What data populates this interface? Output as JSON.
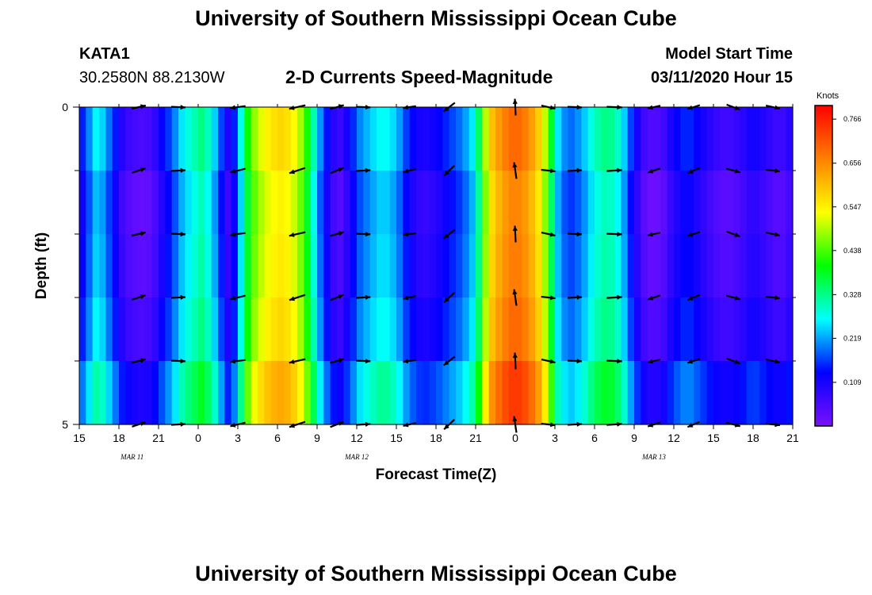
{
  "header": {
    "title": "University of Southern Mississippi Ocean Cube",
    "station": "KATA1",
    "coordinates": "30.2580N 88.2130W",
    "plot_title": "2-D Currents Speed-Magnitude",
    "model_start_label": "Model Start Time",
    "model_start_value": "03/11/2020 Hour 15"
  },
  "footer": {
    "title": "University of Southern Mississippi Ocean Cube"
  },
  "chart_data": {
    "type": "heatmap",
    "title": "2-D Currents Speed-Magnitude",
    "xlabel": "Forecast Time(Z)",
    "ylabel": "Depth (ft)",
    "x_hours": [
      0,
      3,
      6,
      9,
      12,
      15,
      18,
      21,
      24,
      27,
      30,
      33,
      36,
      39,
      42,
      45,
      48,
      51,
      54
    ],
    "x_tick_labels": [
      "15",
      "18",
      "21",
      "0",
      "3",
      "6",
      "9",
      "12",
      "15",
      "18",
      "21",
      "0",
      "3",
      "6",
      "9",
      "12",
      "15",
      "18",
      "21"
    ],
    "date_labels": [
      {
        "text": "MAR  11",
        "hour": 4
      },
      {
        "text": "MAR  12",
        "hour": 21
      },
      {
        "text": "MAR  13",
        "hour": 43.5
      }
    ],
    "ylim": [
      0,
      5
    ],
    "y_tick_labels": [
      "0",
      "5"
    ],
    "y_minor_ticks": [
      1,
      2,
      3,
      4
    ],
    "colorbar": {
      "title": "Knots",
      "min": 0,
      "max": 0.8,
      "labels": [
        "0.766",
        "0.656",
        "0.547",
        "0.438",
        "0.328",
        "0.219",
        "0.109"
      ],
      "label_values": [
        0.766,
        0.656,
        0.547,
        0.438,
        0.328,
        0.219,
        0.109
      ],
      "color_stops": [
        "#7a10ff",
        "#0000ff",
        "#00ffff",
        "#00ff00",
        "#ffff00",
        "#ff8000",
        "#ff0000"
      ]
    },
    "speed_profile": [
      {
        "hour": 0.0,
        "v": 0.12
      },
      {
        "hour": 0.7,
        "v": 0.2
      },
      {
        "hour": 1.4,
        "v": 0.28
      },
      {
        "hour": 2.0,
        "v": 0.22
      },
      {
        "hour": 2.6,
        "v": 0.16
      },
      {
        "hour": 3.4,
        "v": 0.08
      },
      {
        "hour": 4.5,
        "v": 0.05
      },
      {
        "hour": 5.5,
        "v": 0.06
      },
      {
        "hour": 6.2,
        "v": 0.12
      },
      {
        "hour": 7.0,
        "v": 0.18
      },
      {
        "hour": 7.8,
        "v": 0.26
      },
      {
        "hour": 8.6,
        "v": 0.3
      },
      {
        "hour": 9.4,
        "v": 0.34
      },
      {
        "hour": 10.2,
        "v": 0.25
      },
      {
        "hour": 10.8,
        "v": 0.16
      },
      {
        "hour": 11.4,
        "v": 0.08
      },
      {
        "hour": 12.0,
        "v": 0.2
      },
      {
        "hour": 12.6,
        "v": 0.38
      },
      {
        "hour": 13.4,
        "v": 0.5
      },
      {
        "hour": 14.5,
        "v": 0.56
      },
      {
        "hour": 15.5,
        "v": 0.58
      },
      {
        "hour": 16.5,
        "v": 0.52
      },
      {
        "hour": 17.2,
        "v": 0.42
      },
      {
        "hour": 17.8,
        "v": 0.3
      },
      {
        "hour": 18.3,
        "v": 0.2
      },
      {
        "hour": 18.9,
        "v": 0.12
      },
      {
        "hour": 19.6,
        "v": 0.06
      },
      {
        "hour": 20.4,
        "v": 0.12
      },
      {
        "hour": 21.2,
        "v": 0.2
      },
      {
        "hour": 22.0,
        "v": 0.24
      },
      {
        "hour": 23.0,
        "v": 0.28
      },
      {
        "hour": 24.0,
        "v": 0.24
      },
      {
        "hour": 25.0,
        "v": 0.14
      },
      {
        "hour": 26.0,
        "v": 0.1
      },
      {
        "hour": 27.0,
        "v": 0.12
      },
      {
        "hour": 28.0,
        "v": 0.16
      },
      {
        "hour": 29.0,
        "v": 0.2
      },
      {
        "hour": 29.8,
        "v": 0.26
      },
      {
        "hour": 30.4,
        "v": 0.38
      },
      {
        "hour": 31.0,
        "v": 0.58
      },
      {
        "hour": 32.0,
        "v": 0.66
      },
      {
        "hour": 33.0,
        "v": 0.7
      },
      {
        "hour": 34.0,
        "v": 0.66
      },
      {
        "hour": 35.0,
        "v": 0.56
      },
      {
        "hour": 35.6,
        "v": 0.42
      },
      {
        "hour": 36.2,
        "v": 0.26
      },
      {
        "hour": 37.0,
        "v": 0.18
      },
      {
        "hour": 38.0,
        "v": 0.22
      },
      {
        "hour": 39.0,
        "v": 0.3
      },
      {
        "hour": 40.0,
        "v": 0.34
      },
      {
        "hour": 41.0,
        "v": 0.28
      },
      {
        "hour": 41.8,
        "v": 0.16
      },
      {
        "hour": 42.6,
        "v": 0.07
      },
      {
        "hour": 43.4,
        "v": 0.04
      },
      {
        "hour": 44.2,
        "v": 0.06
      },
      {
        "hour": 45.0,
        "v": 0.12
      },
      {
        "hour": 46.0,
        "v": 0.16
      },
      {
        "hour": 47.0,
        "v": 0.12
      },
      {
        "hour": 48.0,
        "v": 0.08
      },
      {
        "hour": 49.0,
        "v": 0.06
      },
      {
        "hour": 50.0,
        "v": 0.08
      },
      {
        "hour": 51.0,
        "v": 0.12
      },
      {
        "hour": 52.0,
        "v": 0.09
      },
      {
        "hour": 53.0,
        "v": 0.06
      },
      {
        "hour": 54.0,
        "v": 0.1
      }
    ],
    "depth_modifiers": [
      0.0,
      -0.03,
      -0.02,
      0.0,
      0.05
    ],
    "vector_hours": [
      4.5,
      7.5,
      12.0,
      16.5,
      19.5,
      21.5,
      25.0,
      28.0,
      33.0,
      35.5,
      37.5,
      40.5,
      43.5,
      46.5,
      49.5,
      52.5
    ],
    "vector_depths": [
      0,
      1,
      2,
      3,
      4,
      5
    ],
    "vector_angles_deg": [
      15,
      0,
      -170,
      -165,
      18,
      0,
      -170,
      -140,
      95,
      -10,
      0,
      0,
      -165,
      -160,
      -18,
      -10,
      120,
      -75,
      170,
      -90,
      -100,
      100,
      0,
      -10,
      180,
      180,
      -160,
      -150,
      10,
      0,
      -20,
      -45
    ],
    "vector_lengths": [
      0.6,
      0.6,
      0.65,
      0.7,
      0.6,
      0.6,
      0.55,
      0.6,
      0.7,
      0.6,
      0.6,
      0.65,
      0.55,
      0.55,
      0.6,
      0.6
    ]
  }
}
